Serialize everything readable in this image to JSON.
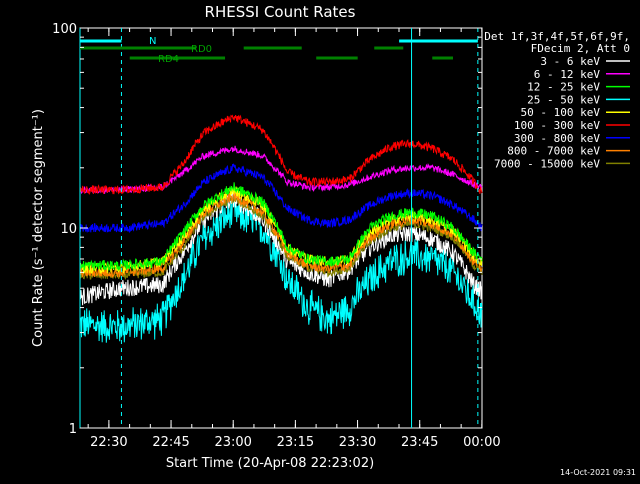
{
  "chart_data": {
    "type": "line",
    "title": "RHESSI Count Rates",
    "xlabel": "Start Time (20-Apr-08 22:23:02)",
    "ylabel": "Count Rate (s⁻¹ detector segment⁻¹)",
    "y_scale": "log",
    "ylim": [
      1,
      100
    ],
    "y_ticks": [
      "1",
      "10",
      "100"
    ],
    "x_unit": "minutes after 22:23:02",
    "xlim": [
      0,
      97
    ],
    "x_ticks": [
      {
        "label": "22:30",
        "t": 6.97
      },
      {
        "label": "22:45",
        "t": 21.97
      },
      {
        "label": "23:00",
        "t": 36.97
      },
      {
        "label": "23:15",
        "t": 51.97
      },
      {
        "label": "23:30",
        "t": 66.97
      },
      {
        "label": "23:45",
        "t": 81.97
      },
      {
        "label": "00:00",
        "t": 96.97
      }
    ],
    "legend_header": [
      "Det 1f,3f,4f,5f,6f,9f,",
      "FDecim 2, Att 0"
    ],
    "legend_position": "right",
    "grid": false,
    "series": [
      {
        "name": "3 - 6 keV",
        "color": "#ffffff",
        "x": [
          0,
          10,
          20,
          25,
          30,
          37,
          44,
          50,
          55,
          60,
          65,
          70,
          75,
          80,
          85,
          90,
          95,
          97
        ],
        "values": [
          4.5,
          5.0,
          5.2,
          7.5,
          11,
          14,
          11,
          6.8,
          6.0,
          5.5,
          6.2,
          8.0,
          9.2,
          9.4,
          8.8,
          7.5,
          5.2,
          4.8
        ]
      },
      {
        "name": "6 - 12 keV",
        "color": "#ff00ff",
        "x": [
          0,
          10,
          20,
          25,
          30,
          37,
          44,
          50,
          55,
          60,
          65,
          70,
          75,
          80,
          85,
          90,
          95,
          97
        ],
        "values": [
          15.5,
          15.5,
          16,
          19,
          23,
          25,
          23,
          17,
          16,
          16,
          16.5,
          18,
          19.5,
          20,
          20,
          18.5,
          16.5,
          16
        ]
      },
      {
        "name": "12 - 25 keV",
        "color": "#00ff00",
        "x": [
          0,
          10,
          20,
          25,
          30,
          37,
          44,
          50,
          55,
          60,
          65,
          70,
          75,
          80,
          85,
          90,
          95,
          97
        ],
        "values": [
          6.5,
          6.5,
          6.8,
          9.5,
          13,
          16,
          13.5,
          8,
          7,
          6.8,
          7,
          10,
          11.5,
          12,
          11.5,
          10,
          7.5,
          7
        ]
      },
      {
        "name": "25 - 50 keV",
        "color": "#00ffff",
        "x": [
          0,
          10,
          20,
          25,
          30,
          37,
          44,
          50,
          55,
          60,
          65,
          70,
          75,
          80,
          85,
          90,
          95,
          97
        ],
        "values": [
          3.3,
          3.2,
          3.5,
          5.5,
          9,
          12,
          10,
          5.5,
          4,
          3.5,
          4,
          5.5,
          6.8,
          7.3,
          7,
          6,
          4.2,
          3.8
        ]
      },
      {
        "name": "50 - 100 keV",
        "color": "#ffff00",
        "x": [
          0,
          10,
          20,
          25,
          30,
          37,
          44,
          50,
          55,
          60,
          65,
          70,
          75,
          80,
          85,
          90,
          95,
          97
        ],
        "values": [
          6.3,
          6.3,
          6.8,
          9,
          12.5,
          15.5,
          13,
          8,
          7,
          6.8,
          7,
          9.5,
          11,
          11.5,
          11,
          9.8,
          7.2,
          6.8
        ]
      },
      {
        "name": "100 - 300 keV",
        "color": "#ff0000",
        "x": [
          0,
          10,
          20,
          25,
          30,
          37,
          44,
          50,
          55,
          60,
          65,
          70,
          75,
          80,
          85,
          90,
          95,
          97
        ],
        "values": [
          15.5,
          15.5,
          16,
          21,
          30,
          36,
          31,
          19,
          17,
          17,
          17.5,
          22,
          25.5,
          26.5,
          25,
          22,
          17,
          15
        ]
      },
      {
        "name": "300 - 800 keV",
        "color": "#0000ff",
        "x": [
          0,
          10,
          20,
          25,
          30,
          37,
          44,
          50,
          55,
          60,
          65,
          70,
          75,
          80,
          85,
          90,
          95,
          97
        ],
        "values": [
          10,
          10,
          10.5,
          13,
          17,
          20,
          18,
          12.5,
          11,
          10.5,
          11,
          13,
          14.5,
          15,
          14.5,
          13,
          11,
          10
        ]
      },
      {
        "name": "800 - 7000 keV",
        "color": "#ff8000",
        "x": [
          0,
          10,
          20,
          25,
          30,
          37,
          44,
          50,
          55,
          60,
          65,
          70,
          75,
          80,
          85,
          90,
          95,
          97
        ],
        "values": [
          6,
          6,
          6.3,
          8.5,
          12,
          14.5,
          12,
          7.5,
          6.5,
          6.3,
          6.5,
          9,
          10.5,
          11,
          10.5,
          9.3,
          6.8,
          6.3
        ]
      },
      {
        "name": "7000 - 15000 keV",
        "color": "#808000",
        "x": [
          0,
          10,
          20,
          25,
          30,
          37,
          44,
          50,
          55,
          60,
          65,
          70,
          75,
          80,
          85,
          90,
          95,
          97
        ],
        "values": [
          5.8,
          5.8,
          6,
          8,
          11.5,
          14,
          11.5,
          7.2,
          6.3,
          6,
          6.3,
          8.5,
          10,
          10.5,
          10,
          9,
          6.5,
          6
        ]
      }
    ],
    "annotations": {
      "N_label": "N",
      "RD0_label": "RD0",
      "RD4_label": "RD4",
      "N_segments": [
        [
          0,
          10
        ],
        [
          77,
          96
        ]
      ],
      "RD0_segments": [
        [
          0,
          28
        ],
        [
          39.5,
          53.5
        ],
        [
          71,
          78
        ]
      ],
      "RD4_segments": [
        [
          12,
          35
        ],
        [
          57,
          67
        ],
        [
          85,
          90
        ]
      ],
      "solid_vlines": [
        0,
        80
      ],
      "dashed_vlines": [
        10,
        96
      ]
    }
  },
  "footer": {
    "date_stamp": "14-Oct-2021 09:31"
  }
}
